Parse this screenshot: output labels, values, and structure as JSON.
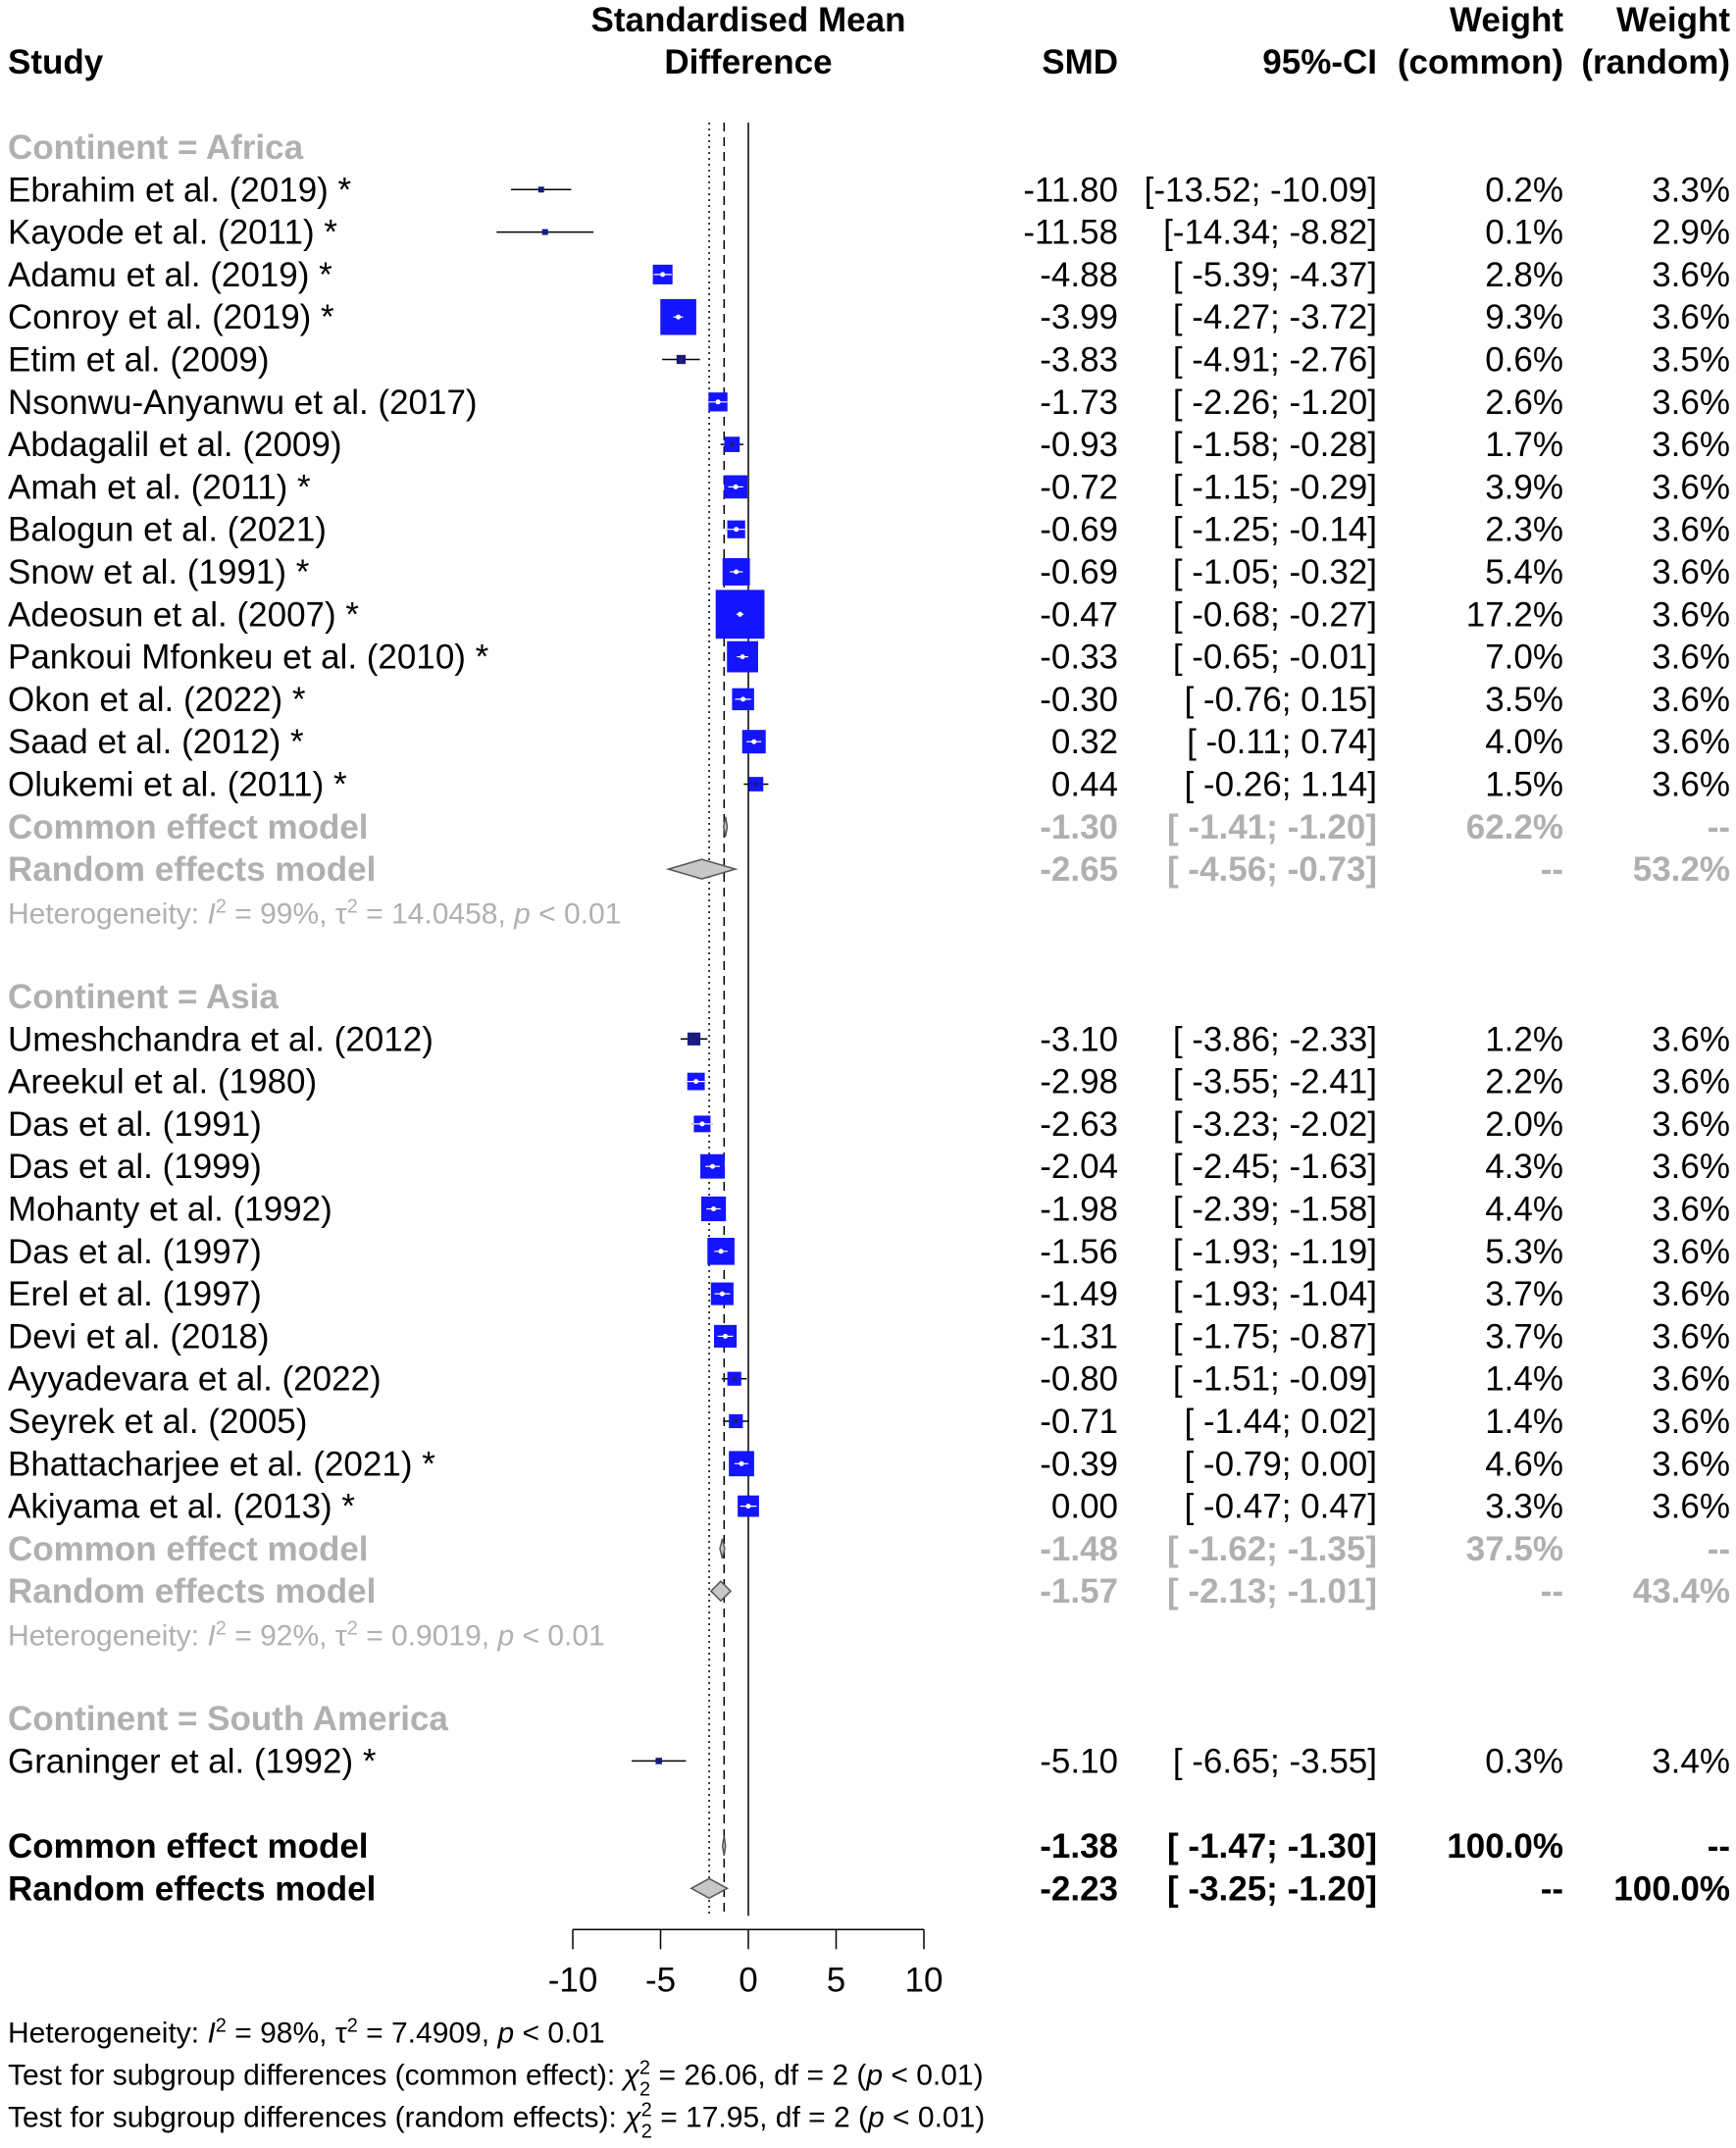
{
  "chart_data": {
    "type": "forest",
    "header": {
      "study": "Study",
      "plot_title_1": "Standardised Mean",
      "plot_title_2": "Difference",
      "smd": "SMD",
      "ci": "95%-CI",
      "wc_1": "Weight",
      "wc_2": "(common)",
      "wr_1": "Weight",
      "wr_2": "(random)"
    },
    "axis": {
      "min": -10,
      "max": 10,
      "ticks": [
        -10,
        -5,
        0,
        5,
        10
      ],
      "ref_common": -1.38,
      "ref_random": -2.23
    },
    "groups": [
      {
        "label": "Continent = Africa",
        "studies": [
          {
            "name": "Ebrahim et al. (2019)",
            "mark": "*",
            "smd": -11.8,
            "lo": -13.52,
            "hi": -10.09,
            "smd_t": "-11.80",
            "ci_t": "[-13.52; -10.09]",
            "wc_t": "0.2%",
            "wr_t": "3.3%",
            "wc": 0.2
          },
          {
            "name": "Kayode et al. (2011)",
            "mark": "*",
            "smd": -11.58,
            "lo": -14.34,
            "hi": -8.82,
            "smd_t": "-11.58",
            "ci_t": "[-14.34;  -8.82]",
            "wc_t": "0.1%",
            "wr_t": "2.9%",
            "wc": 0.1
          },
          {
            "name": "Adamu et al. (2019)",
            "mark": "*",
            "smd": -4.88,
            "lo": -5.39,
            "hi": -4.37,
            "smd_t": "-4.88",
            "ci_t": "[ -5.39;  -4.37]",
            "wc_t": "2.8%",
            "wr_t": "3.6%",
            "wc": 2.8
          },
          {
            "name": "Conroy et al. (2019)",
            "mark": "*",
            "smd": -3.99,
            "lo": -4.27,
            "hi": -3.72,
            "smd_t": "-3.99",
            "ci_t": "[ -4.27;  -3.72]",
            "wc_t": "9.3%",
            "wr_t": "3.6%",
            "wc": 9.3
          },
          {
            "name": "Etim et al. (2009)",
            "mark": "",
            "smd": -3.83,
            "lo": -4.91,
            "hi": -2.76,
            "smd_t": "-3.83",
            "ci_t": "[ -4.91;  -2.76]",
            "wc_t": "0.6%",
            "wr_t": "3.5%",
            "wc": 0.6
          },
          {
            "name": "Nsonwu-Anyanwu et al. (2017)",
            "mark": "",
            "smd": -1.73,
            "lo": -2.26,
            "hi": -1.2,
            "smd_t": "-1.73",
            "ci_t": "[ -2.26;  -1.20]",
            "wc_t": "2.6%",
            "wr_t": "3.6%",
            "wc": 2.6
          },
          {
            "name": "Abdagalil et al. (2009)",
            "mark": "",
            "smd": -0.93,
            "lo": -1.58,
            "hi": -0.28,
            "smd_t": "-0.93",
            "ci_t": "[ -1.58;  -0.28]",
            "wc_t": "1.7%",
            "wr_t": "3.6%",
            "wc": 1.7
          },
          {
            "name": "Amah et al. (2011)",
            "mark": "*",
            "smd": -0.72,
            "lo": -1.15,
            "hi": -0.29,
            "smd_t": "-0.72",
            "ci_t": "[ -1.15;  -0.29]",
            "wc_t": "3.9%",
            "wr_t": "3.6%",
            "wc": 3.9
          },
          {
            "name": "Balogun et al. (2021)",
            "mark": "",
            "smd": -0.69,
            "lo": -1.25,
            "hi": -0.14,
            "smd_t": "-0.69",
            "ci_t": "[ -1.25;  -0.14]",
            "wc_t": "2.3%",
            "wr_t": "3.6%",
            "wc": 2.3
          },
          {
            "name": "Snow et al. (1991)",
            "mark": "*",
            "smd": -0.69,
            "lo": -1.05,
            "hi": -0.32,
            "smd_t": "-0.69",
            "ci_t": "[ -1.05;  -0.32]",
            "wc_t": "5.4%",
            "wr_t": "3.6%",
            "wc": 5.4
          },
          {
            "name": "Adeosun et al. (2007)",
            "mark": "*",
            "smd": -0.47,
            "lo": -0.68,
            "hi": -0.27,
            "smd_t": "-0.47",
            "ci_t": "[ -0.68;  -0.27]",
            "wc_t": "17.2%",
            "wr_t": "3.6%",
            "wc": 17.2
          },
          {
            "name": "Pankoui Mfonkeu et al. (2010)",
            "mark": "*",
            "smd": -0.33,
            "lo": -0.65,
            "hi": -0.01,
            "smd_t": "-0.33",
            "ci_t": "[ -0.65;  -0.01]",
            "wc_t": "7.0%",
            "wr_t": "3.6%",
            "wc": 7.0
          },
          {
            "name": "Okon et al. (2022)",
            "mark": "*",
            "smd": -0.3,
            "lo": -0.76,
            "hi": 0.15,
            "smd_t": "-0.30",
            "ci_t": "[ -0.76;   0.15]",
            "wc_t": "3.5%",
            "wr_t": "3.6%",
            "wc": 3.5
          },
          {
            "name": "Saad et al. (2012)",
            "mark": "*",
            "smd": 0.32,
            "lo": -0.11,
            "hi": 0.74,
            "smd_t": "0.32",
            "ci_t": "[ -0.11;   0.74]",
            "wc_t": "4.0%",
            "wr_t": "3.6%",
            "wc": 4.0
          },
          {
            "name": "Olukemi et al. (2011)",
            "mark": "*",
            "smd": 0.44,
            "lo": -0.26,
            "hi": 1.14,
            "smd_t": "0.44",
            "ci_t": "[ -0.26;   1.14]",
            "wc_t": "1.5%",
            "wr_t": "3.6%",
            "wc": 1.5
          }
        ],
        "common": {
          "label": "Common effect model",
          "smd": -1.3,
          "lo": -1.41,
          "hi": -1.2,
          "smd_t": "-1.30",
          "ci_t": "[ -1.41;  -1.20]",
          "wc_t": "62.2%",
          "wr_t": "--"
        },
        "random": {
          "label": "Random effects model",
          "smd": -2.65,
          "lo": -4.56,
          "hi": -0.73,
          "smd_t": "-2.65",
          "ci_t": "[ -4.56;  -0.73]",
          "wc_t": "--",
          "wr_t": "53.2%"
        },
        "het": {
          "pre": "Heterogeneity: ",
          "i": "I",
          "i2": "2",
          "i_val": " = 99%, ",
          "tau": "τ",
          "tau2": "2",
          "tau_val": " = 14.0458, ",
          "p": "p",
          "p_val": " < 0.01"
        }
      },
      {
        "label": "Continent = Asia",
        "studies": [
          {
            "name": "Umeshchandra et al. (2012)",
            "mark": "",
            "smd": -3.1,
            "lo": -3.86,
            "hi": -2.33,
            "smd_t": "-3.10",
            "ci_t": "[ -3.86;  -2.33]",
            "wc_t": "1.2%",
            "wr_t": "3.6%",
            "wc": 1.2
          },
          {
            "name": "Areekul et al. (1980)",
            "mark": "",
            "smd": -2.98,
            "lo": -3.55,
            "hi": -2.41,
            "smd_t": "-2.98",
            "ci_t": "[ -3.55;  -2.41]",
            "wc_t": "2.2%",
            "wr_t": "3.6%",
            "wc": 2.2
          },
          {
            "name": "Das et al. (1991)",
            "mark": "",
            "smd": -2.63,
            "lo": -3.23,
            "hi": -2.02,
            "smd_t": "-2.63",
            "ci_t": "[ -3.23;  -2.02]",
            "wc_t": "2.0%",
            "wr_t": "3.6%",
            "wc": 2.0
          },
          {
            "name": "Das et al. (1999)",
            "mark": "",
            "smd": -2.04,
            "lo": -2.45,
            "hi": -1.63,
            "smd_t": "-2.04",
            "ci_t": "[ -2.45;  -1.63]",
            "wc_t": "4.3%",
            "wr_t": "3.6%",
            "wc": 4.3
          },
          {
            "name": "Mohanty et al. (1992)",
            "mark": "",
            "smd": -1.98,
            "lo": -2.39,
            "hi": -1.58,
            "smd_t": "-1.98",
            "ci_t": "[ -2.39;  -1.58]",
            "wc_t": "4.4%",
            "wr_t": "3.6%",
            "wc": 4.4
          },
          {
            "name": "Das et al. (1997)",
            "mark": "",
            "smd": -1.56,
            "lo": -1.93,
            "hi": -1.19,
            "smd_t": "-1.56",
            "ci_t": "[ -1.93;  -1.19]",
            "wc_t": "5.3%",
            "wr_t": "3.6%",
            "wc": 5.3
          },
          {
            "name": "Erel et al. (1997)",
            "mark": "",
            "smd": -1.49,
            "lo": -1.93,
            "hi": -1.04,
            "smd_t": "-1.49",
            "ci_t": "[ -1.93;  -1.04]",
            "wc_t": "3.7%",
            "wr_t": "3.6%",
            "wc": 3.7
          },
          {
            "name": "Devi et al. (2018)",
            "mark": "",
            "smd": -1.31,
            "lo": -1.75,
            "hi": -0.87,
            "smd_t": "-1.31",
            "ci_t": "[ -1.75;  -0.87]",
            "wc_t": "3.7%",
            "wr_t": "3.6%",
            "wc": 3.7
          },
          {
            "name": "Ayyadevara et al. (2022)",
            "mark": "",
            "smd": -0.8,
            "lo": -1.51,
            "hi": -0.09,
            "smd_t": "-0.80",
            "ci_t": "[ -1.51;  -0.09]",
            "wc_t": "1.4%",
            "wr_t": "3.6%",
            "wc": 1.4
          },
          {
            "name": "Seyrek et al. (2005)",
            "mark": "",
            "smd": -0.71,
            "lo": -1.44,
            "hi": 0.02,
            "smd_t": "-0.71",
            "ci_t": "[ -1.44;   0.02]",
            "wc_t": "1.4%",
            "wr_t": "3.6%",
            "wc": 1.4
          },
          {
            "name": "Bhattacharjee et al. (2021)",
            "mark": "*",
            "smd": -0.39,
            "lo": -0.79,
            "hi": 0.0,
            "smd_t": "-0.39",
            "ci_t": "[ -0.79;   0.00]",
            "wc_t": "4.6%",
            "wr_t": "3.6%",
            "wc": 4.6
          },
          {
            "name": "Akiyama et al. (2013)",
            "mark": "*",
            "smd": 0.0,
            "lo": -0.47,
            "hi": 0.47,
            "smd_t": "0.00",
            "ci_t": "[ -0.47;   0.47]",
            "wc_t": "3.3%",
            "wr_t": "3.6%",
            "wc": 3.3
          }
        ],
        "common": {
          "label": "Common effect model",
          "smd": -1.48,
          "lo": -1.62,
          "hi": -1.35,
          "smd_t": "-1.48",
          "ci_t": "[ -1.62;  -1.35]",
          "wc_t": "37.5%",
          "wr_t": "--"
        },
        "random": {
          "label": "Random effects model",
          "smd": -1.57,
          "lo": -2.13,
          "hi": -1.01,
          "smd_t": "-1.57",
          "ci_t": "[ -2.13;  -1.01]",
          "wc_t": "--",
          "wr_t": "43.4%"
        },
        "het": {
          "pre": "Heterogeneity: ",
          "i": "I",
          "i2": "2",
          "i_val": " = 92%, ",
          "tau": "τ",
          "tau2": "2",
          "tau_val": " = 0.9019, ",
          "p": "p",
          "p_val": " < 0.01"
        }
      },
      {
        "label": "Continent = South America",
        "studies": [
          {
            "name": "Graninger et al. (1992)",
            "mark": "*",
            "smd": -5.1,
            "lo": -6.65,
            "hi": -3.55,
            "smd_t": "-5.10",
            "ci_t": "[ -6.65;  -3.55]",
            "wc_t": "0.3%",
            "wr_t": "3.4%",
            "wc": 0.3
          }
        ]
      }
    ],
    "overall": {
      "common": {
        "label": "Common effect model",
        "smd": -1.38,
        "lo": -1.47,
        "hi": -1.3,
        "smd_t": "-1.38",
        "ci_t": "[ -1.47;  -1.30]",
        "wc_t": "100.0%",
        "wr_t": "--"
      },
      "random": {
        "label": "Random effects model",
        "smd": -2.23,
        "lo": -3.25,
        "hi": -1.2,
        "smd_t": "-2.23",
        "ci_t": "[ -3.25;  -1.20]",
        "wc_t": "--",
        "wr_t": "100.0%"
      }
    },
    "footer": {
      "het": {
        "pre": "Heterogeneity: ",
        "i": "I",
        "i2": "2",
        "i_val": " = 98%, ",
        "tau": "τ",
        "tau2": "2",
        "tau_val": " = 7.4909, ",
        "p": "p",
        "p_val": " < 0.01"
      },
      "sub_common": {
        "pre": "Test for subgroup differences (common effect): ",
        "chi": "χ",
        "sup": "2",
        "sub": "2",
        "val": " = 26.06, df = 2 (",
        "p": "p",
        "p_val": " < 0.01)"
      },
      "sub_random": {
        "pre": "Test for subgroup differences (random effects): ",
        "chi": "χ",
        "sup": "2",
        "sub": "2",
        "val": " = 17.95, df = 2 (",
        "p": "p",
        "p_val": " < 0.01)"
      }
    }
  }
}
